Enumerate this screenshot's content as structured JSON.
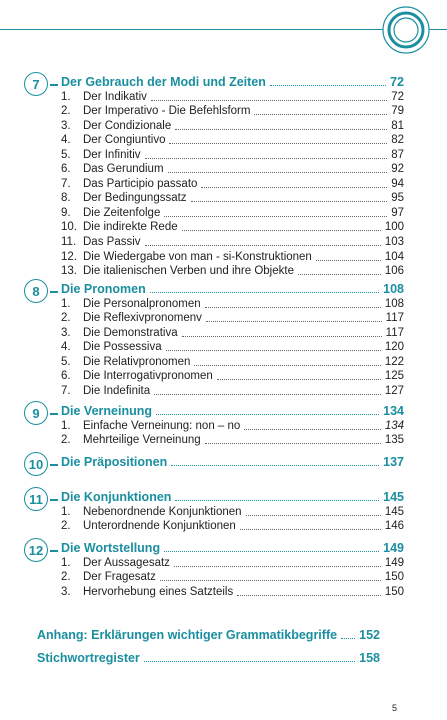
{
  "sections": [
    {
      "number": "7",
      "title": "Der Gebrauch der Modi und Zeiten",
      "page": "72",
      "items": [
        {
          "n": "1.",
          "text": "Der Indikativ",
          "page": "72"
        },
        {
          "n": "2.",
          "text": "Der Imperativo - Die Befehlsform",
          "page": "79"
        },
        {
          "n": "3.",
          "text": "Der Condizionale",
          "page": "81"
        },
        {
          "n": "4.",
          "text": "Der Congiuntivo",
          "page": "82"
        },
        {
          "n": "5.",
          "text": "Der Infinitiv",
          "page": "87"
        },
        {
          "n": "6.",
          "text": "Das Gerundium",
          "page": "92"
        },
        {
          "n": "7.",
          "text": "Das Participio passato",
          "page": "94"
        },
        {
          "n": "8.",
          "text": "Der Bedingungssatz",
          "page": "95"
        },
        {
          "n": "9.",
          "text": "Die Zeitenfolge",
          "page": "97"
        },
        {
          "n": "10.",
          "text": "Die indirekte Rede",
          "page": "100"
        },
        {
          "n": "11.",
          "text": "Das Passiv",
          "page": "103"
        },
        {
          "n": "12.",
          "text": "Die Wiedergabe von man - si-Konstruktionen",
          "page": "104"
        },
        {
          "n": "13.",
          "text": "Die italienischen Verben und ihre Objekte",
          "page": "106"
        }
      ]
    },
    {
      "number": "8",
      "title": "Die Pronomen",
      "page": "108",
      "items": [
        {
          "n": "1.",
          "text": "Die Personalpronomen",
          "page": "108"
        },
        {
          "n": "2.",
          "text": "Die Reflexivpronomenv",
          "page": "117"
        },
        {
          "n": "3.",
          "text": "Die Demonstrativa",
          "page": "117"
        },
        {
          "n": "4.",
          "text": "Die Possessiva",
          "page": "120"
        },
        {
          "n": "5.",
          "text": "Die Relativpronomen",
          "page": "122"
        },
        {
          "n": "6.",
          "text": "Die Interrogativpronomen",
          "page": "125"
        },
        {
          "n": "7.",
          "text": "Die Indefinita",
          "page": "127"
        }
      ]
    },
    {
      "number": "9",
      "title": "Die Verneinung",
      "page": "134",
      "items": [
        {
          "n": "1.",
          "text": "Einfache Verneinung: non – no",
          "page": "134"
        },
        {
          "n": "2.",
          "text": "Mehrteilige Verneinung",
          "page": "135"
        }
      ]
    },
    {
      "number": "10",
      "title": "Die Präpositionen",
      "page": "137",
      "items": []
    },
    {
      "number": "11",
      "title": "Die Konjunktionen",
      "page": "145",
      "items": [
        {
          "n": "1.",
          "text": "Nebenordnende Konjunktionen",
          "page": "145"
        },
        {
          "n": "2.",
          "text": "Unterordnende Konjunktionen",
          "page": "146"
        }
      ]
    },
    {
      "number": "12",
      "title": "Die Wortstellung",
      "page": "149",
      "items": [
        {
          "n": "1.",
          "text": "Der Aussagesatz",
          "page": "149"
        },
        {
          "n": "2.",
          "text": "Der Fragesatz",
          "page": "150"
        },
        {
          "n": "3.",
          "text": "Hervorhebung eines Satzteils",
          "page": "150"
        }
      ]
    }
  ],
  "appendix": [
    {
      "text": "Anhang: Erklärungen wichtiger Grammatikbegriffe",
      "page": "152"
    },
    {
      "text": "Stichwortregister",
      "page": "158"
    }
  ],
  "page_number": "5",
  "colors": {
    "accent": "#1a8fa0"
  }
}
